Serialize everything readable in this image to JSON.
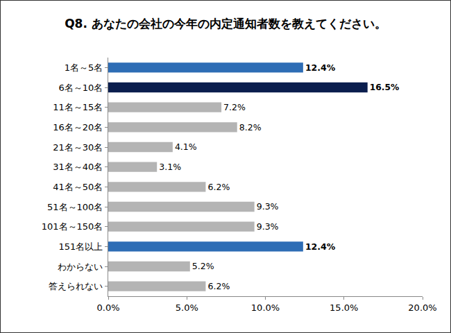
{
  "chart_data": {
    "type": "bar",
    "title": "Q8. あなたの会社の今年の内定通知者数を教えてください。",
    "orientation": "horizontal",
    "categories": [
      "1名～5名",
      "6名～10名",
      "11名～15名",
      "16名～20名",
      "21名～30名",
      "31名～40名",
      "41名～50名",
      "51名～100名",
      "101名～150名",
      "151名以上",
      "わからない",
      "答えられない"
    ],
    "values": [
      12.4,
      16.5,
      7.2,
      8.2,
      4.1,
      3.1,
      6.2,
      9.3,
      9.3,
      12.4,
      5.2,
      6.2
    ],
    "value_labels": [
      "12.4%",
      "16.5%",
      "7.2%",
      "8.2%",
      "4.1%",
      "3.1%",
      "6.2%",
      "9.3%",
      "9.3%",
      "12.4%",
      "5.2%",
      "6.2%"
    ],
    "colors": [
      "#2e6db5",
      "#0b1e4e",
      "#b4b4b4",
      "#b4b4b4",
      "#b4b4b4",
      "#b4b4b4",
      "#b4b4b4",
      "#b4b4b4",
      "#b4b4b4",
      "#2e6db5",
      "#b4b4b4",
      "#b4b4b4"
    ],
    "data_labels": true,
    "xlim": [
      0,
      20
    ],
    "xticks": [
      {
        "value": 0,
        "label": "0.0%"
      },
      {
        "value": 5,
        "label": "5.0%"
      },
      {
        "value": 10,
        "label": "10.0%"
      },
      {
        "value": 15,
        "label": "15.0%"
      },
      {
        "value": 20,
        "label": "20.0%"
      }
    ],
    "grid": false
  }
}
